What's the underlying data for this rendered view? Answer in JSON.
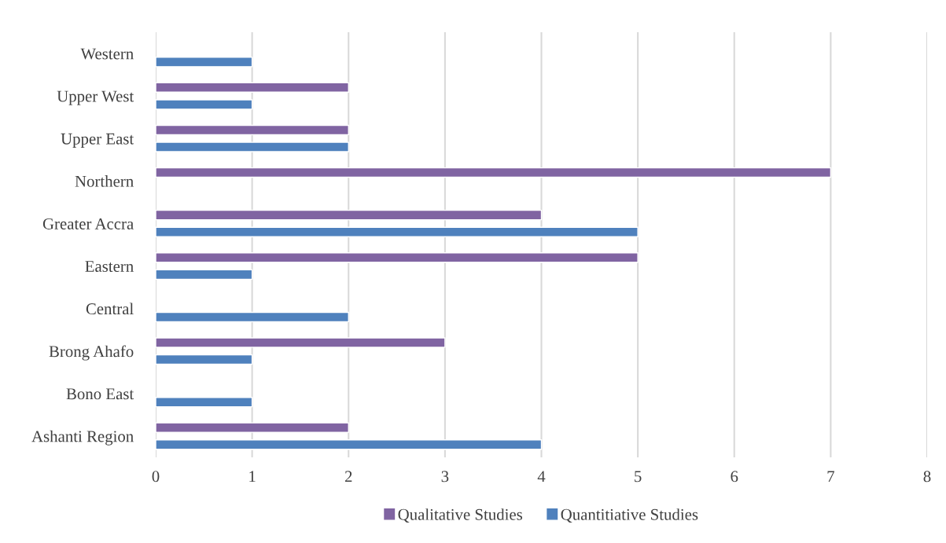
{
  "chart_data": {
    "type": "bar",
    "orientation": "horizontal",
    "categories": [
      "Western",
      "Upper West",
      "Upper East",
      "Northern",
      "Greater Accra",
      "Eastern",
      "Central",
      "Brong Ahafo",
      "Bono East",
      "Ashanti Region"
    ],
    "series": [
      {
        "name": "Qualitative Studies",
        "color": "#8064a2",
        "values": [
          null,
          2,
          2,
          7,
          4,
          5,
          null,
          3,
          null,
          2
        ]
      },
      {
        "name": "Quantitiative Studies",
        "color": "#4f81bd",
        "values": [
          1,
          1,
          2,
          null,
          5,
          1,
          2,
          1,
          1,
          4
        ]
      }
    ],
    "xlim": [
      0,
      8
    ],
    "xticks": [
      0,
      1,
      2,
      3,
      4,
      5,
      6,
      7,
      8
    ],
    "grid": "x",
    "legend": "bottom"
  }
}
